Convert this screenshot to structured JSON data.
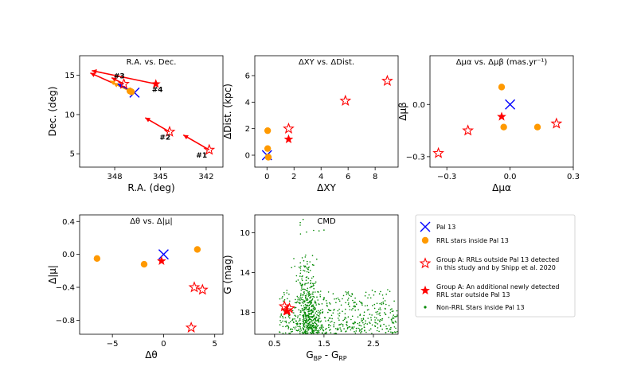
{
  "colors": {
    "pal13": "#0000ff",
    "rrl_inside": "#ff9900",
    "groupA": "#ff0000",
    "nonrrl": "#008800",
    "arrow_red": "#ff0000",
    "arrow_orange": "#ff9900",
    "arrow_blue": "#0000ff"
  },
  "chart_data": [
    {
      "id": "ra-dec",
      "type": "scatter",
      "title": "R.A. vs. Dec.",
      "xlabel": "R.A. (deg)",
      "ylabel": "Dec. (deg)",
      "xlim": [
        350.3,
        340.9
      ],
      "ylim": [
        3.3,
        17.5
      ],
      "xticks": [
        348,
        345,
        342
      ],
      "yticks": [
        5,
        10,
        15
      ],
      "tick_labels_x": [
        "348",
        "345",
        "342"
      ],
      "tick_labels_y": [
        "5",
        "10",
        "15"
      ],
      "series": [
        {
          "kind": "pal13",
          "points": [
            [
              346.7,
              12.8
            ]
          ]
        },
        {
          "kind": "rrl_inside",
          "points": [
            [
              346.9,
              12.9
            ],
            [
              347.0,
              13.0
            ]
          ]
        },
        {
          "kind": "groupA_open",
          "points": [
            [
              347.4,
              13.9
            ],
            [
              344.4,
              7.8
            ],
            [
              341.8,
              5.5
            ]
          ]
        },
        {
          "kind": "groupA_filled",
          "points": [
            [
              345.3,
              13.9
            ]
          ]
        }
      ],
      "arrows": [
        {
          "color": "red",
          "from": [
            341.8,
            5.5
          ],
          "to": [
            343.5,
            7.4
          ]
        },
        {
          "color": "red",
          "from": [
            344.4,
            7.8
          ],
          "to": [
            346.0,
            9.6
          ]
        },
        {
          "color": "red",
          "from": [
            345.3,
            13.9
          ],
          "to": [
            349.5,
            15.6
          ]
        },
        {
          "color": "red",
          "from": [
            346.7,
            12.8
          ],
          "to": [
            349.6,
            15.3
          ]
        },
        {
          "color": "red",
          "from": [
            347.4,
            13.9
          ],
          "to": [
            348.2,
            14.7
          ]
        },
        {
          "color": "orange",
          "from": [
            346.9,
            12.9
          ],
          "to": [
            348.3,
            14.3
          ]
        },
        {
          "color": "orange",
          "from": [
            347.0,
            13.0
          ],
          "to": [
            348.1,
            14.0
          ]
        },
        {
          "color": "blue",
          "from": [
            346.7,
            12.8
          ],
          "to": [
            347.8,
            13.9
          ]
        }
      ],
      "annotations": [
        {
          "text": "#3",
          "x": 347.7,
          "y": 14.6
        },
        {
          "text": "#4",
          "x": 345.2,
          "y": 12.9
        },
        {
          "text": "#2",
          "x": 344.7,
          "y": 6.8
        },
        {
          "text": "#1",
          "x": 342.3,
          "y": 4.5
        }
      ]
    },
    {
      "id": "xy-dist",
      "type": "scatter",
      "title": "ΔXY vs. ΔDist.",
      "xlabel": "ΔXY",
      "ylabel": "ΔDist. (kpc)",
      "xlim": [
        -0.9,
        9.7
      ],
      "ylim": [
        -0.9,
        7.5
      ],
      "xticks": [
        0,
        2,
        4,
        6,
        8
      ],
      "yticks": [
        0,
        2,
        4,
        6
      ],
      "tick_labels_x": [
        "0",
        "2",
        "4",
        "6",
        "8"
      ],
      "tick_labels_y": [
        "0",
        "2",
        "4",
        "6"
      ],
      "series": [
        {
          "kind": "pal13",
          "points": [
            [
              0.0,
              0.0
            ]
          ]
        },
        {
          "kind": "rrl_inside",
          "points": [
            [
              0.05,
              1.85
            ],
            [
              0.05,
              0.5
            ],
            [
              0.1,
              -0.15
            ]
          ]
        },
        {
          "kind": "groupA_open",
          "points": [
            [
              1.6,
              2.0
            ],
            [
              5.8,
              4.1
            ],
            [
              8.9,
              5.6
            ]
          ]
        },
        {
          "kind": "groupA_filled",
          "points": [
            [
              1.6,
              1.2
            ]
          ]
        }
      ]
    },
    {
      "id": "pm",
      "type": "scatter",
      "title": "Δμα vs. Δμβ (mas.yr⁻¹)",
      "xlabel": "Δμα",
      "ylabel": "Δμβ",
      "xlim": [
        -0.38,
        0.3
      ],
      "ylim": [
        -0.36,
        0.28
      ],
      "xticks": [
        -0.3,
        0.0,
        0.3
      ],
      "yticks": [
        -0.3,
        0.0
      ],
      "tick_labels_x": [
        "−0.3",
        "0.0",
        "0.3"
      ],
      "tick_labels_y": [
        "−0.3",
        "0.0"
      ],
      "series": [
        {
          "kind": "pal13",
          "points": [
            [
              0.0,
              0.0
            ]
          ]
        },
        {
          "kind": "rrl_inside",
          "points": [
            [
              -0.04,
              0.1
            ],
            [
              -0.03,
              -0.13
            ],
            [
              0.13,
              -0.13
            ]
          ]
        },
        {
          "kind": "groupA_open",
          "points": [
            [
              -0.34,
              -0.28
            ],
            [
              -0.2,
              -0.15
            ],
            [
              0.22,
              -0.11
            ]
          ]
        },
        {
          "kind": "groupA_filled",
          "points": [
            [
              -0.04,
              -0.07
            ]
          ]
        }
      ]
    },
    {
      "id": "theta-mu",
      "type": "scatter",
      "title": "Δθ vs. Δ|μ|",
      "xlabel": "Δθ",
      "ylabel": "Δ|μ|",
      "xlim": [
        -8.2,
        5.8
      ],
      "ylim": [
        -0.97,
        0.48
      ],
      "xticks": [
        -5,
        0,
        5
      ],
      "yticks": [
        0.4,
        0.0,
        -0.4,
        -0.8
      ],
      "tick_labels_x": [
        "−5",
        "0",
        "5"
      ],
      "tick_labels_y": [
        "0.4",
        "0.0",
        "−0.4",
        "−0.8"
      ],
      "series": [
        {
          "kind": "pal13",
          "points": [
            [
              0.0,
              0.0
            ]
          ]
        },
        {
          "kind": "rrl_inside",
          "points": [
            [
              -6.5,
              -0.05
            ],
            [
              -1.9,
              -0.12
            ],
            [
              3.3,
              0.06
            ]
          ]
        },
        {
          "kind": "groupA_open",
          "points": [
            [
              3.0,
              -0.4
            ],
            [
              3.8,
              -0.43
            ],
            [
              2.7,
              -0.89
            ]
          ]
        },
        {
          "kind": "groupA_filled",
          "points": [
            [
              -0.2,
              -0.08
            ]
          ]
        }
      ]
    },
    {
      "id": "cmd",
      "type": "scatter",
      "title": "CMD",
      "xlabel": "G",
      "xlabel_sub1": "BP",
      "xlabel_mid": " - G",
      "xlabel_sub2": "RP",
      "ylabel": "G (mag)",
      "xlim": [
        0.1,
        3.0
      ],
      "ylim": [
        20.2,
        8.2
      ],
      "xticks": [
        0.5,
        1.5,
        2.5
      ],
      "yticks": [
        10,
        14,
        18
      ],
      "tick_labels_x": [
        "0.5",
        "1.5",
        "2.5"
      ],
      "tick_labels_y": [
        "10",
        "14",
        "18"
      ],
      "nonrrl_note": "dense cloud of ~900 small green points between G≈12 and G≈20.2, colour 0.5–3.0; densest near colour 0.9–1.2 at G 14–20",
      "series": [
        {
          "kind": "groupA_open",
          "points": [
            [
              0.7,
              17.4
            ],
            [
              0.75,
              17.8
            ],
            [
              0.8,
              17.6
            ]
          ]
        },
        {
          "kind": "groupA_filled",
          "points": [
            [
              0.75,
              17.9
            ]
          ]
        }
      ]
    }
  ],
  "legend": {
    "items": [
      {
        "kind": "pal13",
        "label_lines": [
          "Pal 13"
        ]
      },
      {
        "kind": "rrl_inside",
        "label_lines": [
          "RRL stars inside Pal 13"
        ]
      },
      {
        "kind": "groupA_open",
        "label_lines": [
          "Group A: RRLs outside Pal 13 detected",
          "in this study and by Shipp et al. 2020"
        ]
      },
      {
        "kind": "groupA_filled",
        "label_lines": [
          "Group A: An additional newly detected",
          "RRL star outside Pal 13"
        ]
      },
      {
        "kind": "nonrrl",
        "label_lines": [
          "Non-RRL Stars inside Pal 13"
        ]
      }
    ]
  }
}
